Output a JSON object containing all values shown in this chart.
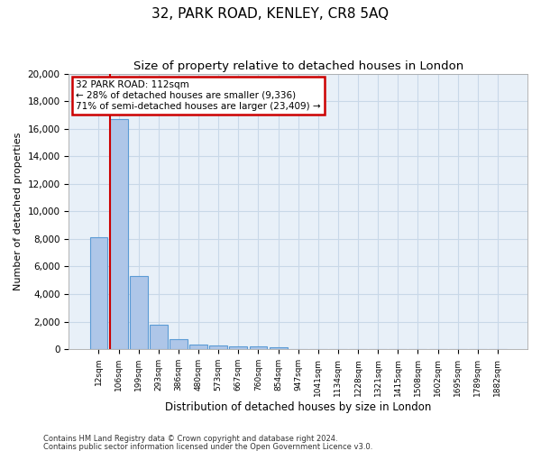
{
  "title": "32, PARK ROAD, KENLEY, CR8 5AQ",
  "subtitle": "Size of property relative to detached houses in London",
  "xlabel": "Distribution of detached houses by size in London",
  "ylabel": "Number of detached properties",
  "bar_categories": [
    "12sqm",
    "106sqm",
    "199sqm",
    "293sqm",
    "386sqm",
    "480sqm",
    "573sqm",
    "667sqm",
    "760sqm",
    "854sqm",
    "947sqm",
    "1041sqm",
    "1134sqm",
    "1228sqm",
    "1321sqm",
    "1415sqm",
    "1508sqm",
    "1602sqm",
    "1695sqm",
    "1789sqm",
    "1882sqm"
  ],
  "bar_values": [
    8100,
    16700,
    5300,
    1750,
    700,
    350,
    270,
    210,
    200,
    170,
    0,
    0,
    0,
    0,
    0,
    0,
    0,
    0,
    0,
    0,
    0
  ],
  "bar_color": "#aec6e8",
  "bar_edge_color": "#5b9bd5",
  "annotation_text": "32 PARK ROAD: 112sqm\n← 28% of detached houses are smaller (9,336)\n71% of semi-detached houses are larger (23,409) →",
  "annotation_box_color": "#ffffff",
  "annotation_box_edge": "#cc0000",
  "ylim": [
    0,
    20000
  ],
  "yticks": [
    0,
    2000,
    4000,
    6000,
    8000,
    10000,
    12000,
    14000,
    16000,
    18000,
    20000
  ],
  "vline_color": "#cc0000",
  "vline_x": 0.55,
  "grid_color": "#c8d8e8",
  "bg_color": "#e8f0f8",
  "footer1": "Contains HM Land Registry data © Crown copyright and database right 2024.",
  "footer2": "Contains public sector information licensed under the Open Government Licence v3.0."
}
